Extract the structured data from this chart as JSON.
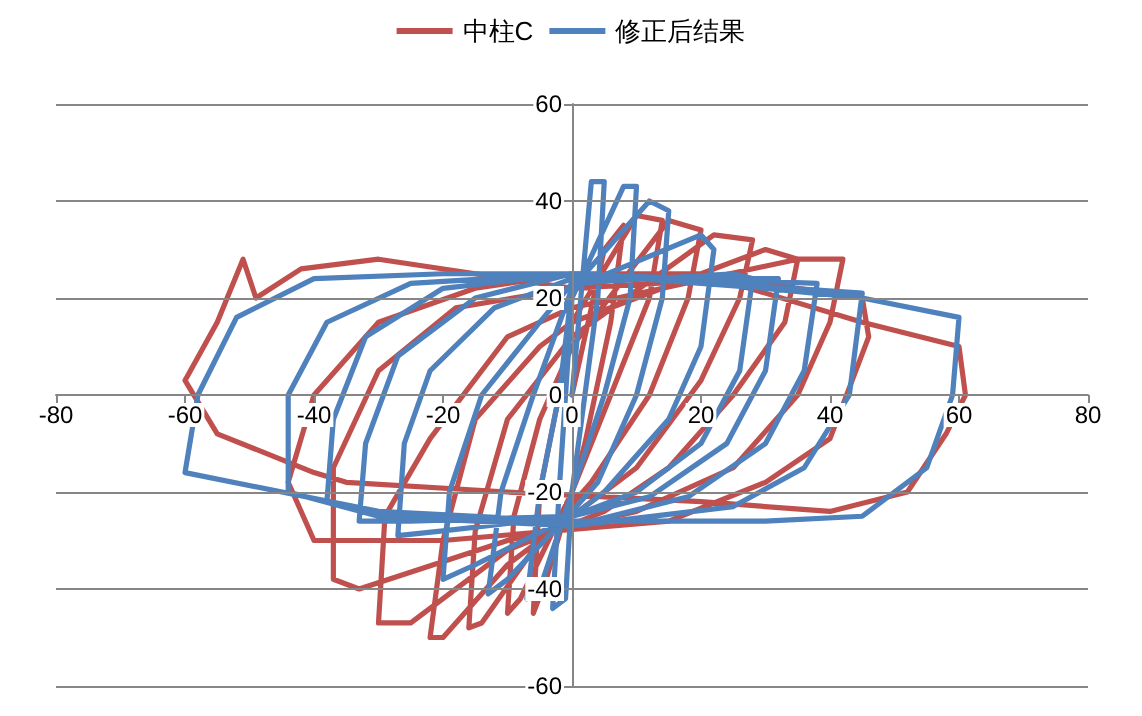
{
  "chart_data": {
    "type": "line",
    "xlim": [
      -80,
      80
    ],
    "ylim": [
      -60,
      60
    ],
    "xticks": [
      -80,
      -60,
      -40,
      -20,
      0,
      20,
      40,
      60,
      80
    ],
    "yticks": [
      -60,
      -40,
      -20,
      0,
      20,
      40,
      60
    ],
    "grid": "y",
    "legend": "top",
    "marker": "none",
    "line_style": "solid",
    "series": [
      {
        "name": "中柱C",
        "color": "#c0504d",
        "x": [
          0,
          5,
          8,
          6,
          2,
          0,
          -4,
          -6,
          -5,
          -2,
          0,
          10,
          14,
          12,
          6,
          0,
          -8,
          -10,
          -9,
          -5,
          0,
          15,
          20,
          18,
          12,
          3,
          -5,
          -14,
          -16,
          -15,
          -10,
          0,
          22,
          28,
          26,
          20,
          10,
          0,
          -10,
          -20,
          -22,
          -20,
          -15,
          -5,
          0,
          30,
          35,
          33,
          25,
          15,
          5,
          -10,
          -25,
          -30,
          -29,
          -22,
          -10,
          0,
          35,
          42,
          40,
          35,
          25,
          10,
          -10,
          -33,
          -37,
          -37,
          -30,
          -18,
          0,
          25,
          45,
          46,
          40,
          30,
          15,
          -20,
          -40,
          -44,
          -40,
          -30,
          -15,
          0,
          20,
          45,
          60,
          61,
          58,
          52,
          40,
          20,
          -10,
          -35,
          -40,
          -55,
          -60,
          -55,
          -51,
          -49,
          -42,
          -30,
          -15,
          0
        ],
        "values": [
          0,
          30,
          35,
          15,
          -10,
          -20,
          -38,
          -45,
          -20,
          0,
          15,
          37,
          36,
          20,
          0,
          -20,
          -42,
          -45,
          -25,
          -5,
          10,
          36,
          34,
          20,
          0,
          -18,
          -30,
          -47,
          -48,
          -28,
          -5,
          12,
          33,
          32,
          20,
          3,
          -15,
          -25,
          -35,
          -50,
          -50,
          -30,
          -5,
          10,
          15,
          30,
          28,
          15,
          0,
          -15,
          -24,
          -32,
          -47,
          -47,
          -25,
          -9,
          12,
          18,
          28,
          28,
          15,
          0,
          -15,
          -24,
          -30,
          -40,
          -38,
          -15,
          5,
          18,
          22,
          24,
          20,
          12,
          -9,
          -18,
          -26,
          -30,
          -30,
          -18,
          0,
          15,
          22,
          25,
          25,
          15,
          10,
          0,
          -8,
          -20,
          -24,
          -22,
          -20,
          -18,
          -16,
          -8,
          3,
          15,
          28,
          20,
          26,
          28,
          25,
          22
        ]
      },
      {
        "name": "修正后结果",
        "color": "#4f81bd",
        "x": [
          0,
          3,
          5,
          4,
          0,
          -1,
          -3,
          -2,
          0,
          8,
          10,
          9,
          5,
          0,
          -5,
          -7,
          -5,
          -2,
          0,
          12,
          15,
          14,
          10,
          4,
          0,
          -10,
          -13,
          -11,
          -6,
          0,
          20,
          22,
          20,
          15,
          5,
          0,
          -15,
          -20,
          -19,
          -14,
          -5,
          0,
          25,
          28,
          26,
          20,
          10,
          0,
          -20,
          -27,
          -26,
          -22,
          -12,
          0,
          32,
          30,
          24,
          12,
          0,
          -25,
          -33,
          -32,
          -27,
          -15,
          0,
          38,
          36,
          30,
          18,
          0,
          -30,
          -38,
          -37,
          -32,
          -20,
          0,
          45,
          43,
          36,
          25,
          0,
          -30,
          -44,
          -44,
          -38,
          -25,
          0,
          30,
          45,
          60,
          59,
          55,
          45,
          30,
          0,
          -30,
          -60,
          -58,
          -52,
          -40,
          -20,
          0
        ],
        "values": [
          0,
          44,
          44,
          20,
          -20,
          -42,
          -44,
          -20,
          20,
          43,
          43,
          20,
          0,
          -20,
          -40,
          -42,
          -20,
          0,
          22,
          40,
          38,
          20,
          0,
          -18,
          -24,
          -38,
          -41,
          -20,
          0,
          22,
          33,
          30,
          10,
          -5,
          -20,
          -25,
          -35,
          -38,
          -20,
          0,
          15,
          23,
          25,
          24,
          5,
          -10,
          -20,
          -25,
          -28,
          -29,
          -10,
          5,
          18,
          24,
          24,
          5,
          -10,
          -21,
          -25,
          -26,
          -26,
          -10,
          8,
          20,
          25,
          23,
          5,
          -10,
          -21,
          -27,
          -25,
          -22,
          -5,
          12,
          22,
          25,
          21,
          0,
          -15,
          -23,
          -27,
          -25,
          -20,
          0,
          15,
          23,
          25,
          22,
          20,
          16,
          0,
          -15,
          -25,
          -26,
          -26,
          -24,
          -16,
          0,
          16,
          24,
          25,
          25
        ]
      }
    ]
  }
}
